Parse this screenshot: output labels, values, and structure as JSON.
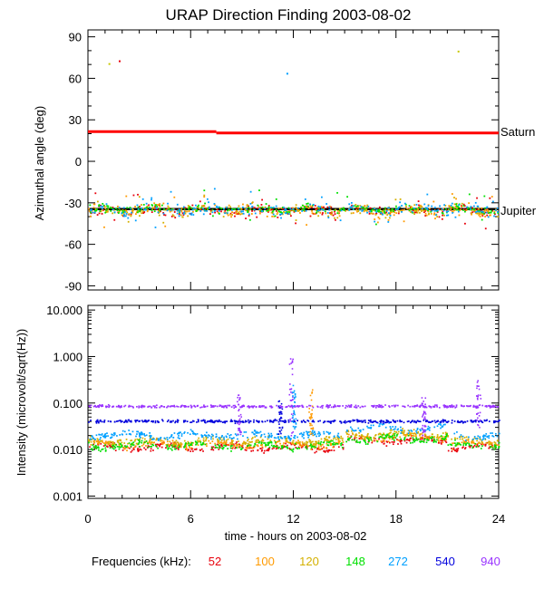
{
  "chart_data": [
    {
      "type": "scatter",
      "title": "URAP Direction Finding  2003-08-02",
      "ylabel": "Azimuthal angle (deg)",
      "xlim": [
        0,
        24
      ],
      "ylim": [
        -93,
        95
      ],
      "yticks": [
        "90",
        "60",
        "30",
        "0",
        "-30",
        "-60",
        "-90"
      ],
      "ytick_values": [
        90,
        60,
        30,
        0,
        -30,
        -60,
        -90
      ],
      "reference_lines": [
        {
          "label": "Saturn",
          "color": "#ff0000",
          "segments": [
            [
              0,
              7.5,
              21.5
            ],
            [
              7.5,
              24,
              20.5
            ]
          ]
        },
        {
          "label": "Jupiter",
          "color": "#000000",
          "segments": [
            [
              0,
              24,
              -34.5
            ]
          ]
        }
      ],
      "series": [
        {
          "name": "52",
          "color": "#e8000b",
          "center": -35,
          "spread": 6
        },
        {
          "name": "100",
          "color": "#ff9a00",
          "center": -35,
          "spread": 7
        },
        {
          "name": "120",
          "color": "#d4b000",
          "center": -35,
          "spread": 6
        },
        {
          "name": "148",
          "color": "#00e000",
          "center": -34,
          "spread": 5
        },
        {
          "name": "272",
          "color": "#00a0ff",
          "center": -34,
          "spread": 8
        }
      ],
      "outliers": [
        {
          "x": 1.2,
          "y": 71,
          "color": "#c8c800"
        },
        {
          "x": 1.8,
          "y": 73,
          "color": "#e8000b"
        },
        {
          "x": 11.6,
          "y": 64,
          "color": "#00a0ff"
        },
        {
          "x": 21.6,
          "y": 80,
          "color": "#c8c800"
        }
      ]
    },
    {
      "type": "scatter",
      "ylabel": "Intensity (microvolt/sqrt(Hz))",
      "xlabel": "time - hours on 2003-08-02",
      "xlim": [
        0,
        24
      ],
      "ylim_log10": [
        -3.05,
        1.1
      ],
      "yticks": [
        "10.000",
        "1.000",
        "0.100",
        "0.010",
        "0.001"
      ],
      "ytick_values": [
        10,
        1,
        0.1,
        0.01,
        0.001
      ],
      "xticks": [
        "0",
        "6",
        "12",
        "18",
        "24"
      ],
      "xtick_values": [
        0,
        6,
        12,
        18,
        24
      ],
      "series": [
        {
          "name": "52",
          "color": "#e8000b",
          "level": 0.0115
        },
        {
          "name": "100",
          "color": "#ff9a00",
          "level": 0.0135
        },
        {
          "name": "120",
          "color": "#d4b000",
          "level": 0.016
        },
        {
          "name": "148",
          "color": "#00e000",
          "level": 0.0125
        },
        {
          "name": "272",
          "color": "#00a0ff",
          "level": 0.021
        },
        {
          "name": "540",
          "color": "#0000dd",
          "level": 0.042
        },
        {
          "name": "940",
          "color": "#9933ff",
          "level": 0.088
        }
      ]
    }
  ],
  "legend": {
    "label": "Frequencies (kHz):",
    "items": [
      {
        "name": "52",
        "color": "#e8000b"
      },
      {
        "name": "100",
        "color": "#ff9a00"
      },
      {
        "name": "120",
        "color": "#d4b000"
      },
      {
        "name": "148",
        "color": "#00e000"
      },
      {
        "name": "272",
        "color": "#00a0ff"
      },
      {
        "name": "540",
        "color": "#0000dd"
      },
      {
        "name": "940",
        "color": "#9933ff"
      }
    ]
  }
}
